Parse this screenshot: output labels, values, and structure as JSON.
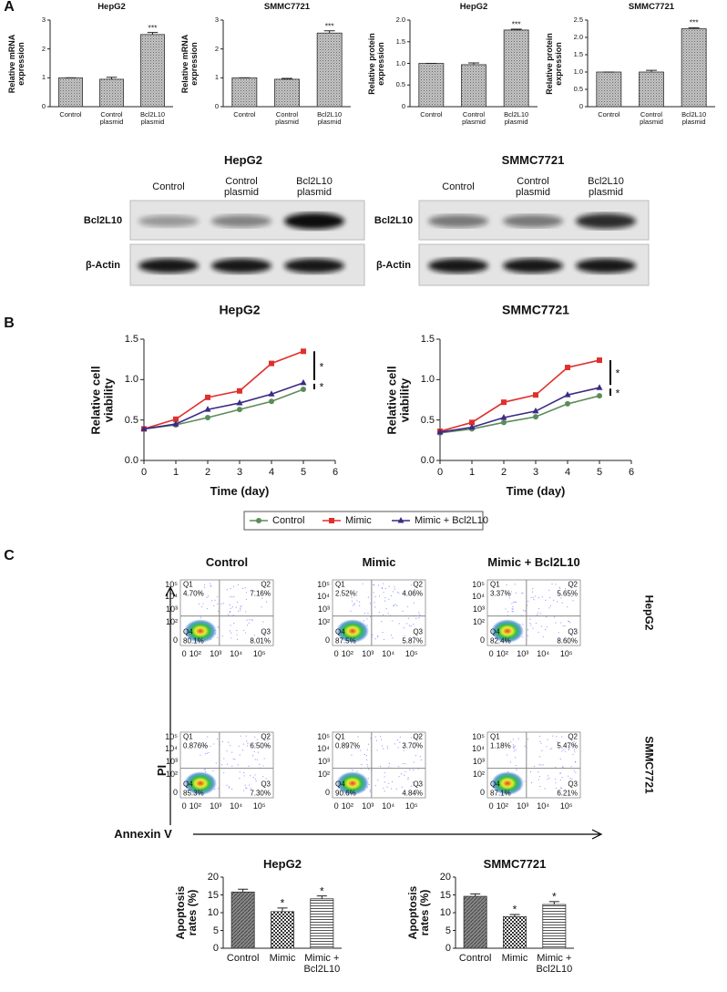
{
  "panel_labels": [
    "A",
    "B",
    "C"
  ],
  "chart_data": [
    {
      "type": "bar",
      "title": "HepG2",
      "y_label": "Relative mRNA expression",
      "categories": [
        "Control",
        "Control plasmid",
        "Bcl2L10 plasmid"
      ],
      "values": [
        1,
        0.95,
        2.5
      ],
      "errors": [
        0,
        0.07,
        0.07
      ],
      "significance": [
        null,
        null,
        "***"
      ],
      "pattern": "stipple",
      "ylim": [
        0,
        3
      ],
      "yticks": [
        0,
        1,
        2,
        3
      ]
    },
    {
      "type": "bar",
      "title": "SMMC7721",
      "y_label": "Relative mRNA expression",
      "categories": [
        "Control",
        "Control plasmid",
        "Bcl2L10 plasmid"
      ],
      "values": [
        1,
        0.95,
        2.55
      ],
      "errors": [
        0,
        0.03,
        0.08
      ],
      "significance": [
        null,
        null,
        "***"
      ],
      "pattern": "stipple",
      "ylim": [
        0,
        3
      ],
      "yticks": [
        0,
        1,
        2,
        3
      ]
    },
    {
      "type": "bar",
      "title": "HepG2",
      "y_label": "Relative protein expression",
      "categories": [
        "Control",
        "Control plasmid",
        "Bcl2L10 plasmid"
      ],
      "values": [
        1,
        0.97,
        1.77
      ],
      "errors": [
        0,
        0.04,
        0.02
      ],
      "significance": [
        null,
        null,
        "***"
      ],
      "pattern": "stipple",
      "ylim": [
        0,
        2
      ],
      "yticks": [
        0,
        0.5,
        {
          "value": 1,
          "label": "1.0"
        },
        1.5,
        {
          "value": 2,
          "label": "2.0"
        }
      ]
    },
    {
      "type": "bar",
      "title": "SMMC7721",
      "y_label": "Relative protein expression",
      "categories": [
        "Control",
        "Control plasmid",
        "Bcl2L10 plasmid"
      ],
      "values": [
        1,
        1.0,
        2.25
      ],
      "errors": [
        0,
        0.05,
        0.03
      ],
      "significance": [
        null,
        null,
        "***"
      ],
      "pattern": "stipple",
      "ylim": [
        0,
        2.5
      ],
      "yticks": [
        0,
        0.5,
        {
          "value": 1,
          "label": "1.0"
        },
        1.5,
        {
          "value": 2,
          "label": "2.0"
        },
        2.5
      ]
    },
    {
      "type": "line",
      "title": "HepG2",
      "x_label": "Time (day)",
      "y_label": "Relative cell viability",
      "x": [
        0,
        1,
        2,
        3,
        4,
        5
      ],
      "xlim": [
        0,
        6
      ],
      "xticks": [
        0,
        1,
        2,
        3,
        4,
        5,
        6
      ],
      "ylim": [
        0,
        1.5
      ],
      "yticks": [
        {
          "value": 0,
          "label": "0.0"
        },
        0.5,
        {
          "value": 1,
          "label": "1.0"
        },
        1.5
      ],
      "series": [
        {
          "name": "Control",
          "color": "#5b8c5a",
          "marker": "circle",
          "values": [
            0.39,
            0.44,
            0.53,
            0.63,
            0.73,
            0.88
          ]
        },
        {
          "name": "Mimic",
          "color": "#e0302c",
          "marker": "square",
          "values": [
            0.39,
            0.51,
            0.78,
            0.86,
            1.2,
            1.35
          ]
        },
        {
          "name": "Mimic + Bcl2L10",
          "color": "#3b2a86",
          "marker": "triangle",
          "values": [
            0.39,
            0.45,
            0.63,
            0.71,
            0.82,
            0.96
          ]
        }
      ],
      "annotations": [
        "*",
        "*"
      ]
    },
    {
      "type": "line",
      "title": "SMMC7721",
      "x_label": "Time (day)",
      "y_label": "Relative cell viability",
      "x": [
        0,
        1,
        2,
        3,
        4,
        5
      ],
      "xlim": [
        0,
        6
      ],
      "xticks": [
        0,
        1,
        2,
        3,
        4,
        5,
        6
      ],
      "ylim": [
        0,
        1.5
      ],
      "yticks": [
        {
          "value": 0,
          "label": "0.0"
        },
        0.5,
        {
          "value": 1,
          "label": "1.0"
        },
        1.5
      ],
      "series": [
        {
          "color": "#5b8c5a",
          "marker": "circle",
          "values": [
            0.34,
            0.39,
            0.47,
            0.54,
            0.7,
            0.8
          ]
        },
        {
          "color": "#e0302c",
          "marker": "square",
          "values": [
            0.36,
            0.47,
            0.72,
            0.81,
            1.15,
            1.24
          ]
        },
        {
          "color": "#3b2a86",
          "marker": "triangle",
          "values": [
            0.35,
            0.41,
            0.53,
            0.61,
            0.81,
            0.9
          ]
        }
      ],
      "annotations": [
        "*",
        "*"
      ]
    },
    {
      "type": "bar",
      "title": "HepG2",
      "y_label": "Apoptosis rates (%)",
      "categories": [
        "Control",
        "Mimic",
        "Mimic + Bcl2L10"
      ],
      "values": [
        15.8,
        10.3,
        13.9
      ],
      "errors": [
        0.8,
        1.0,
        0.8
      ],
      "significance": [
        null,
        "*",
        "*"
      ],
      "patterns": [
        "diagonal",
        "checker",
        "horizontal"
      ],
      "ylim": [
        0,
        20
      ],
      "yticks": [
        0,
        5,
        10,
        15,
        20
      ]
    },
    {
      "type": "bar",
      "title": "SMMC7721",
      "y_label": "Apoptosis rates (%)",
      "categories": [
        "Control",
        "Mimic",
        "Mimic + Bcl2L10"
      ],
      "values": [
        14.6,
        8.9,
        12.3
      ],
      "errors": [
        0.7,
        0.6,
        0.8
      ],
      "significance": [
        null,
        "*",
        "*"
      ],
      "patterns": [
        "diagonal",
        "checker",
        "horizontal"
      ],
      "ylim": [
        0,
        20
      ],
      "yticks": [
        0,
        5,
        10,
        15,
        20
      ]
    }
  ],
  "western_blots": [
    {
      "title": "HepG2",
      "lanes": [
        "Control",
        "Control plasmid",
        "Bcl2L10 plasmid"
      ],
      "rows": [
        "Bcl2L10",
        "β-Actin"
      ]
    },
    {
      "title": "SMMC7721",
      "lanes": [
        "Control",
        "Control plasmid",
        "Bcl2L10 plasmid"
      ],
      "rows": [
        "Bcl2L10",
        "β-Actin"
      ]
    }
  ],
  "flow_cytometry": {
    "columns": [
      "Control",
      "Mimic",
      "Mimic + Bcl2L10"
    ],
    "rows": [
      "HepG2",
      "SMMC7721"
    ],
    "y_label": "PI",
    "x_label": "Annexin V",
    "y_ticks": [
      "10⁵",
      "10⁴",
      "10³",
      "10²",
      "0"
    ],
    "x_ticks": [
      "0",
      "10²",
      "10³",
      "10⁴",
      "10⁵"
    ],
    "quadrant_names": [
      "Q1",
      "Q2",
      "Q3",
      "Q4"
    ],
    "plots": [
      [
        [
          "4.70%",
          "7.16%",
          "8.01%",
          "80.1%"
        ],
        [
          "2.52%",
          "4.06%",
          "5.87%",
          "87.5%"
        ],
        [
          "3.37%",
          "5.65%",
          "8.60%",
          "82.4%"
        ]
      ],
      [
        [
          "0.876%",
          "6.50%",
          "7.30%",
          "85.3%"
        ],
        [
          "0.897%",
          "3.70%",
          "4.84%",
          "90.6%"
        ],
        [
          "1.18%",
          "5.47%",
          "6.21%",
          "87.1%"
        ]
      ]
    ]
  }
}
